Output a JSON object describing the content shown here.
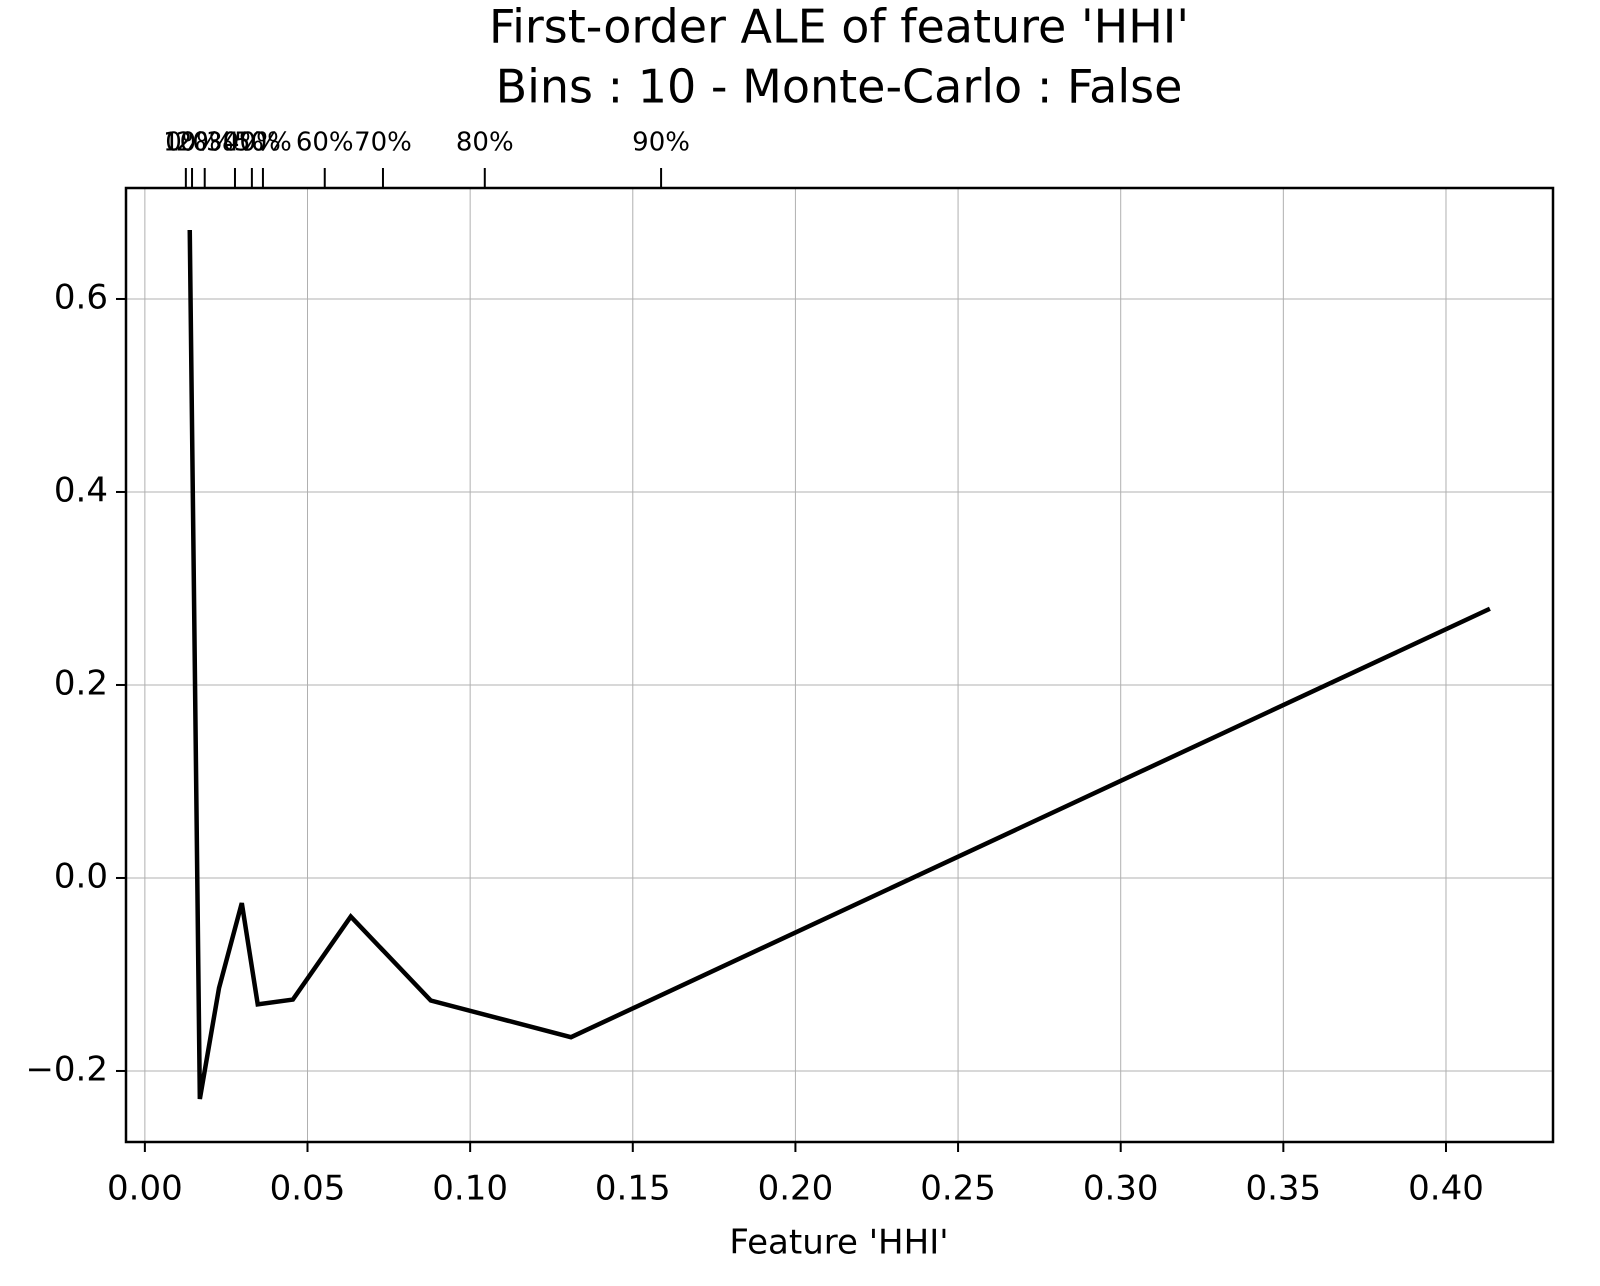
{
  "chart_data": {
    "type": "line",
    "title": "First-order ALE of feature 'HHI'",
    "subtitle": "Bins : 10 - Monte-Carlo : False",
    "x_label": "Feature 'HHI'",
    "x": [
      0.0138,
      0.0169,
      0.0228,
      0.0298,
      0.0347,
      0.0455,
      0.0633,
      0.0879,
      0.131,
      0.4135
    ],
    "values": [
      0.6715,
      -0.229,
      -0.114,
      -0.026,
      -0.131,
      -0.126,
      -0.04,
      -0.127,
      -0.165,
      0.279
    ],
    "color": "#000000",
    "xlim": [
      -0.0058,
      0.4329
    ],
    "ylim": [
      -0.2736,
      0.715
    ],
    "xticks": [
      {
        "value": 0,
        "label": "0.00"
      },
      0.05,
      {
        "value": 0.1,
        "label": "0.10"
      },
      0.15,
      {
        "value": 0.2,
        "label": "0.20"
      },
      0.25,
      {
        "value": 0.3,
        "label": "0.30"
      },
      0.35,
      {
        "value": 0.4,
        "label": "0.40"
      }
    ],
    "yticks": [
      {
        "value": -0.2,
        "label": "−0.2"
      },
      {
        "value": 0,
        "label": "0.0"
      },
      0.2,
      0.4,
      0.6
    ],
    "x2ticks": [
      {
        "value": 0.0126,
        "label": "0%"
      },
      {
        "value": 0.0145,
        "label": "10%"
      },
      {
        "value": 0.0184,
        "label": "20%"
      },
      {
        "value": 0.0277,
        "label": "30%"
      },
      {
        "value": 0.0329,
        "label": "40%"
      },
      {
        "value": 0.0363,
        "label": "50%"
      },
      {
        "value": 0.0553,
        "label": "60%"
      },
      {
        "value": 0.0732,
        "label": "70%"
      },
      {
        "value": 0.1045,
        "label": "80%"
      },
      {
        "value": 0.1587,
        "label": "90%"
      }
    ],
    "grid": true
  }
}
